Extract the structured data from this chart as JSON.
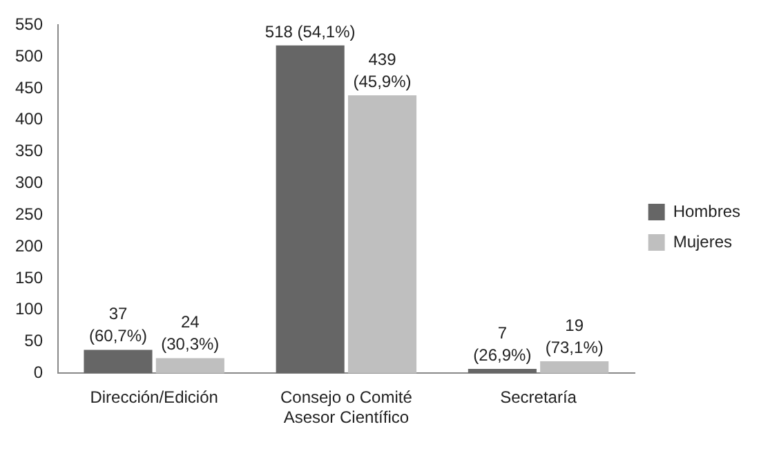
{
  "chart_data": {
    "type": "bar",
    "categories": [
      "Dirección/Edición",
      "Consejo o Comité Asesor Científico",
      "Secretaría"
    ],
    "series": [
      {
        "name": "Hombres",
        "color": "#666666",
        "values": [
          37,
          518,
          7
        ],
        "value_labels": [
          "37 (60,7%)",
          "518 (54,1%)",
          "7 (26,9%)"
        ]
      },
      {
        "name": "Mujeres",
        "color": "#bfbfbf",
        "values": [
          24,
          439,
          19
        ],
        "value_labels": [
          "24 (30,3%)",
          "439 (45,9%)",
          "19 (73,1%)"
        ]
      }
    ],
    "ylim": [
      0,
      550
    ],
    "yticks": [
      0,
      50,
      100,
      150,
      200,
      250,
      300,
      350,
      400,
      450,
      500,
      550
    ],
    "grid": false,
    "legend": "right"
  }
}
